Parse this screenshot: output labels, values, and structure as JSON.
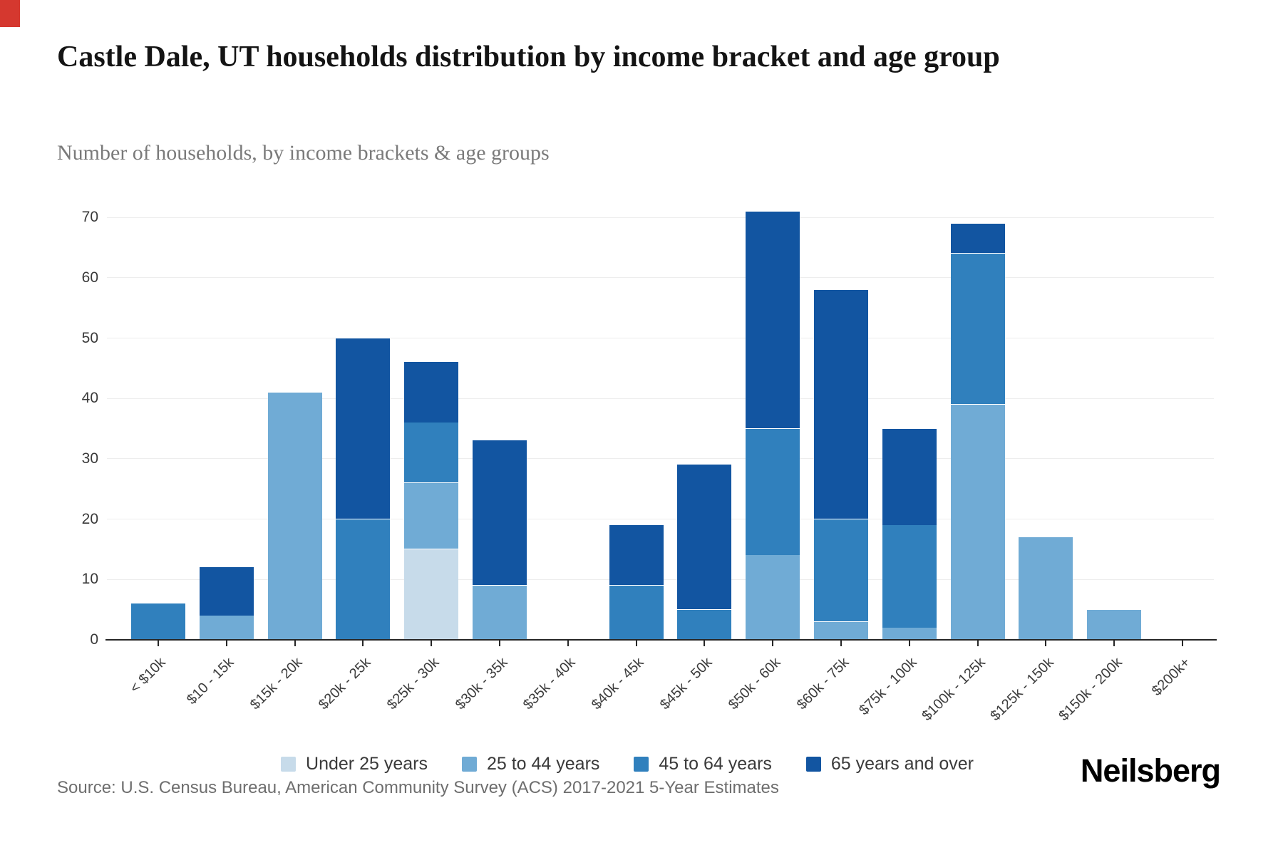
{
  "page": {
    "title": "Castle Dale, UT households distribution by income bracket and age group",
    "subtitle": "Number of households, by income brackets & age groups",
    "source": "Source: U.S. Census Bureau, American Community Survey (ACS) 2017-2021 5-Year Estimates",
    "brand": "Neilsberg"
  },
  "colors": {
    "under_25": "#c7dbea",
    "age_25_44": "#70abd5",
    "age_45_64": "#3080bd",
    "age_65_over": "#1255a1",
    "gridline": "#ededed",
    "axis": "#262626",
    "corner_flag": "#d5382f"
  },
  "chart_data": {
    "type": "bar",
    "stacked": true,
    "title": "Castle Dale, UT households distribution by income bracket and age group",
    "subtitle": "Number of households, by income brackets & age groups",
    "xlabel": "",
    "ylabel": "Number of households",
    "ylim": [
      0,
      70
    ],
    "yticks": [
      0,
      10,
      20,
      30,
      40,
      50,
      60,
      70
    ],
    "grid": true,
    "legend_position": "bottom",
    "categories": [
      "< $10k",
      "$10 - 15k",
      "$15k - 20k",
      "$20k - 25k",
      "$25k - 30k",
      "$30k - 35k",
      "$35k - 40k",
      "$40k - 45k",
      "$45k - 50k",
      "$50k - 60k",
      "$60k - 75k",
      "$75k - 100k",
      "$100k - 125k",
      "$125k - 150k",
      "$150k - 200k",
      "$200k+"
    ],
    "series": [
      {
        "name": "Under 25 years",
        "color_key": "under_25",
        "values": [
          0,
          0,
          0,
          0,
          15,
          0,
          0,
          0,
          0,
          0,
          0,
          0,
          0,
          0,
          0,
          0
        ]
      },
      {
        "name": "25 to 44 years",
        "color_key": "age_25_44",
        "values": [
          0,
          4,
          41,
          0,
          11,
          9,
          0,
          0,
          0,
          14,
          3,
          2,
          39,
          17,
          5,
          0
        ]
      },
      {
        "name": "45 to 64 years",
        "color_key": "age_45_64",
        "values": [
          6,
          0,
          0,
          20,
          10,
          0,
          0,
          9,
          5,
          21,
          17,
          17,
          25,
          0,
          0,
          0
        ]
      },
      {
        "name": "65 years and over",
        "color_key": "age_65_over",
        "values": [
          0,
          8,
          0,
          30,
          10,
          24,
          0,
          10,
          24,
          36,
          38,
          16,
          5,
          0,
          0,
          0
        ]
      }
    ],
    "totals": [
      6,
      12,
      41,
      50,
      46,
      33,
      0,
      19,
      29,
      71,
      58,
      35,
      69,
      17,
      5,
      0
    ]
  }
}
